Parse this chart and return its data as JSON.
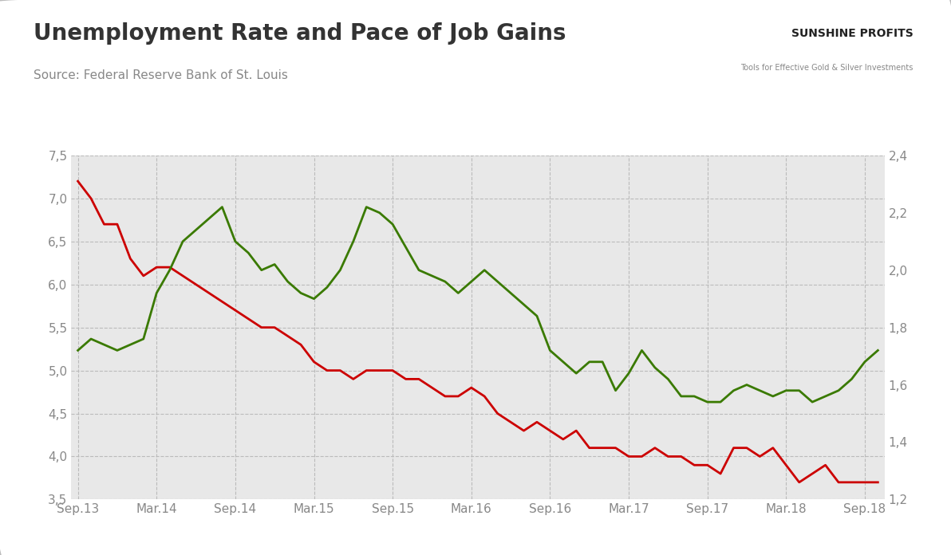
{
  "title": "Unemployment Rate and Pace of Job Gains",
  "source": "Source: Federal Reserve Bank of St. Louis",
  "background_color": "#e8e8e8",
  "outer_background": "#ffffff",
  "left_ylim": [
    3.5,
    7.5
  ],
  "right_ylim": [
    1.2,
    2.4
  ],
  "left_yticks": [
    3.5,
    4.0,
    4.5,
    5.0,
    5.5,
    6.0,
    6.5,
    7.0,
    7.5
  ],
  "right_yticks": [
    1.2,
    1.4,
    1.6,
    1.8,
    2.0,
    2.2,
    2.4
  ],
  "xtick_labels": [
    "Sep.13",
    "Mar.14",
    "Sep.14",
    "Mar.15",
    "Sep.15",
    "Mar.16",
    "Sep.16",
    "Mar.17",
    "Sep.17",
    "Mar.18",
    "Sep.18"
  ],
  "red_line_color": "#cc0000",
  "green_line_color": "#3a7a00",
  "grid_color": "#bbbbbb",
  "tick_label_color": "#888888",
  "title_color": "#333333",
  "source_color": "#888888",
  "unemployment": [
    7.2,
    7.0,
    6.7,
    6.7,
    6.3,
    6.1,
    6.2,
    6.2,
    6.1,
    6.0,
    5.9,
    5.8,
    5.7,
    5.6,
    5.5,
    5.5,
    5.4,
    5.3,
    5.1,
    5.0,
    5.0,
    4.9,
    5.0,
    5.0,
    5.0,
    4.9,
    4.9,
    4.8,
    4.7,
    4.7,
    4.8,
    4.7,
    4.5,
    4.4,
    4.3,
    4.4,
    4.3,
    4.2,
    4.3,
    4.1,
    4.1,
    4.1,
    4.0,
    4.0,
    4.1,
    4.0,
    4.0,
    3.9,
    3.9,
    3.8,
    4.1,
    4.1,
    4.0,
    4.1,
    3.9,
    3.7,
    3.8,
    3.9,
    3.7,
    3.7,
    3.7,
    3.7
  ],
  "payrolls": [
    1.72,
    1.76,
    1.74,
    1.72,
    1.74,
    1.76,
    1.92,
    2.0,
    2.1,
    2.14,
    2.18,
    2.22,
    2.1,
    2.06,
    2.0,
    2.02,
    1.96,
    1.92,
    1.9,
    1.94,
    2.0,
    2.1,
    2.22,
    2.2,
    2.16,
    2.08,
    2.0,
    1.98,
    1.96,
    1.92,
    1.96,
    2.0,
    1.96,
    1.92,
    1.88,
    1.84,
    1.72,
    1.68,
    1.64,
    1.68,
    1.68,
    1.58,
    1.64,
    1.72,
    1.66,
    1.62,
    1.56,
    1.56,
    1.54,
    1.54,
    1.58,
    1.6,
    1.58,
    1.56,
    1.58,
    1.58,
    1.54,
    1.56,
    1.58,
    1.62,
    1.68,
    1.72
  ]
}
